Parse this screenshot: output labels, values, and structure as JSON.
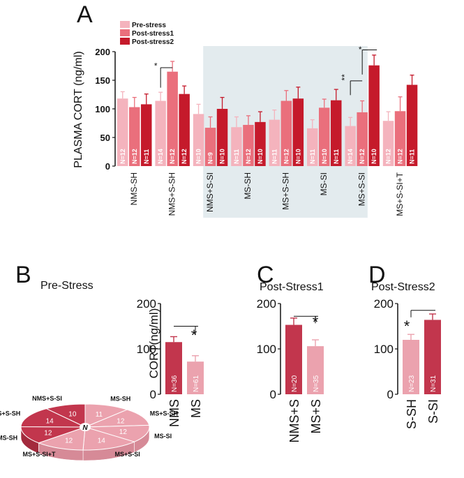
{
  "panels": {
    "A": "A",
    "B": "B",
    "C": "C",
    "D": "D"
  },
  "colors": {
    "pre": "#f4b3bd",
    "post1": "#ea6f7c",
    "post2": "#c51a2b",
    "nms": "#c2364d",
    "ms": "#eba2ae",
    "shade": "#e3ebee"
  },
  "chart_data": [
    {
      "id": "A",
      "type": "bar",
      "ylabel": "PLASMA CORT (ng/ml)",
      "ylim": [
        0,
        200
      ],
      "yticks": [
        0,
        50,
        100,
        150,
        200
      ],
      "legend": [
        "Pre-stress",
        "Post-stress1",
        "Post-stress2"
      ],
      "legend_position": "top-left",
      "categories": [
        "NMS-SH",
        "NMS+S-SH",
        "NMS+S-SI",
        "MS-SH",
        "MS+S-SH",
        "MS-SI",
        "MS+S-SI",
        "MS+S-SI+T"
      ],
      "series": [
        {
          "name": "Pre-stress",
          "values": [
            118,
            114,
            91,
            68,
            81,
            66,
            70,
            79
          ],
          "errors": [
            12,
            15,
            17,
            18,
            17,
            15,
            15,
            16
          ],
          "n": [
            "N=12",
            "N=14",
            "N=10",
            "N=11",
            "N=11",
            "N=11",
            "N=14",
            "N=12"
          ]
        },
        {
          "name": "Post-stress1",
          "values": [
            103,
            165,
            67,
            72,
            114,
            102,
            94,
            96
          ],
          "errors": [
            17,
            18,
            19,
            16,
            18,
            15,
            20,
            25
          ],
          "n": [
            "N=12",
            "N=12",
            "N=9",
            "N=12",
            "N=12",
            "N=10",
            "N=12",
            "N=12"
          ]
        },
        {
          "name": "Post-stress2",
          "values": [
            108,
            126,
            100,
            77,
            118,
            115,
            176,
            142
          ],
          "errors": [
            18,
            14,
            20,
            18,
            20,
            19,
            18,
            17
          ],
          "n": [
            "N=11",
            "N=12",
            "N=10",
            "N=10",
            "N=10",
            "N=11",
            "N=10",
            "N=11"
          ]
        }
      ],
      "shaded_categories": [
        "MS-SH",
        "MS+S-SH",
        "MS-SI",
        "MS+S-SI"
      ],
      "annotations": [
        "*",
        "**",
        "*"
      ]
    },
    {
      "id": "B",
      "type": "bar",
      "title": "Pre-Stress",
      "ylabel": "CORT(ng/ml)",
      "ylim": [
        0,
        200
      ],
      "yticks": [
        0,
        100,
        200
      ],
      "categories": [
        "NMS",
        "MS"
      ],
      "values": [
        115,
        72
      ],
      "errors": [
        12,
        13
      ],
      "n": [
        "N=36",
        "N=61"
      ],
      "annotation": "*"
    },
    {
      "id": "C",
      "type": "bar",
      "title": "Post-Stress1",
      "ylim": [
        0,
        200
      ],
      "yticks": [
        0,
        100,
        200
      ],
      "categories": [
        "NMS+S",
        "MS+S"
      ],
      "values": [
        153,
        106
      ],
      "errors": [
        15,
        14
      ],
      "n": [
        "N=20",
        "N=35"
      ],
      "annotation": "*"
    },
    {
      "id": "D",
      "type": "bar",
      "title": "Post-Stress2",
      "ylim": [
        0,
        200
      ],
      "yticks": [
        0,
        100,
        200
      ],
      "categories": [
        "S-SH",
        "S-SI"
      ],
      "values": [
        120,
        164
      ],
      "errors": [
        12,
        13
      ],
      "n": [
        "N=23",
        "N=31"
      ],
      "annotation": "*"
    },
    {
      "id": "B-pie",
      "type": "pie",
      "center_label": "N",
      "slices": [
        {
          "label": "NMS+S-SI",
          "value": 10
        },
        {
          "label": "MS-SH",
          "value": 11
        },
        {
          "label": "MS+S-SH",
          "value": 12
        },
        {
          "label": "MS-SI",
          "value": 12
        },
        {
          "label": "MS+S-SI",
          "value": 14
        },
        {
          "label": "MS+S-SI+T",
          "value": 12
        },
        {
          "label": "NMS-SH",
          "value": 12
        },
        {
          "label": "NMS+S-SH",
          "value": 14
        }
      ]
    }
  ]
}
